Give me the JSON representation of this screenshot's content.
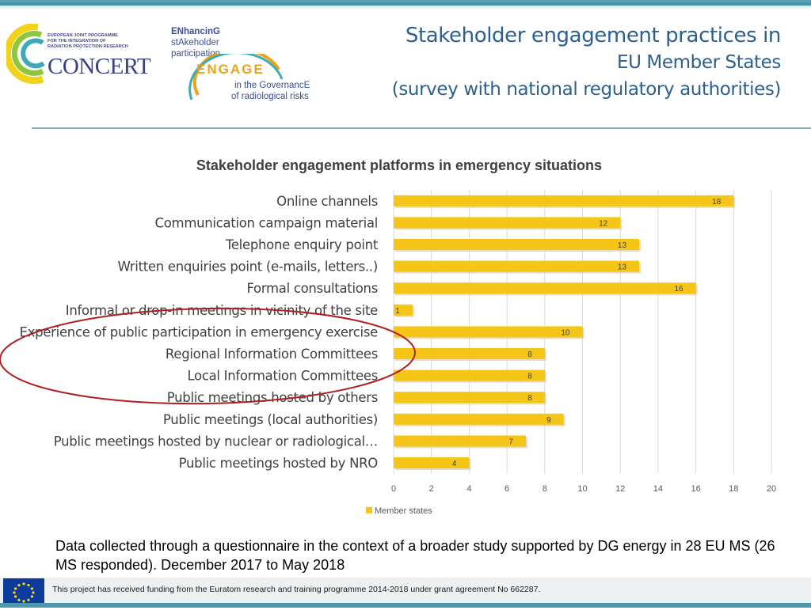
{
  "header": {
    "title_line1": "Stakeholder engagement practices in",
    "title_line2": "EU Member States",
    "title_line3": "(survey with national regulatory authorities)"
  },
  "logos": {
    "concert": {
      "small_lines": [
        "EUROPEAN JOINT PROGRAMME",
        "FOR THE INTEGRATION OF",
        "RADIATION PROTECTION RESEARCH"
      ],
      "name": "CONCERT"
    },
    "engage": {
      "line1": "ENhancinG",
      "line2": "stAkeholder",
      "line3": "participation",
      "word": "ENGAGE",
      "line4": "in the GovernancE",
      "line5": "of radiological risks"
    }
  },
  "chart_data": {
    "type": "bar",
    "orientation": "horizontal",
    "title": "Stakeholder engagement platforms in emergency situations",
    "categories": [
      "Online channels",
      "Communication campaign material",
      "Telephone enquiry point",
      "Written enquiries point (e-mails, letters..)",
      "Formal consultations",
      "Informal or drop-in meetings in vicinity of the site",
      "Experience of public participation in emergency exercise",
      "Regional Information Committees",
      "Local Information Committees",
      "Public meetings hosted by others",
      "Public meetings (local authorities)",
      "Public meetings hosted by nuclear or radiological…",
      "Public meetings hosted by NRO"
    ],
    "series": [
      {
        "name": "Member states",
        "values": [
          18,
          12,
          13,
          13,
          16,
          1,
          10,
          8,
          8,
          8,
          9,
          7,
          4
        ]
      }
    ],
    "xlim": [
      0,
      20
    ],
    "xticks": [
      0,
      2,
      4,
      6,
      8,
      10,
      12,
      14,
      16,
      18,
      20
    ],
    "grid": true,
    "legend": "bottom-center",
    "bar_color": "#f5c518",
    "highlight": "red ellipse around Informal meetings to Public meetings hosted by others"
  },
  "footer": {
    "note": "Data collected through a questionnaire  in the context of a broader study supported by DG energy in 28 EU MS (26 MS responded). December 2017 to May 2018",
    "funding": "This project has received funding from the Euratom research and training programme 2014-2018 under grant agreement No 662287."
  }
}
